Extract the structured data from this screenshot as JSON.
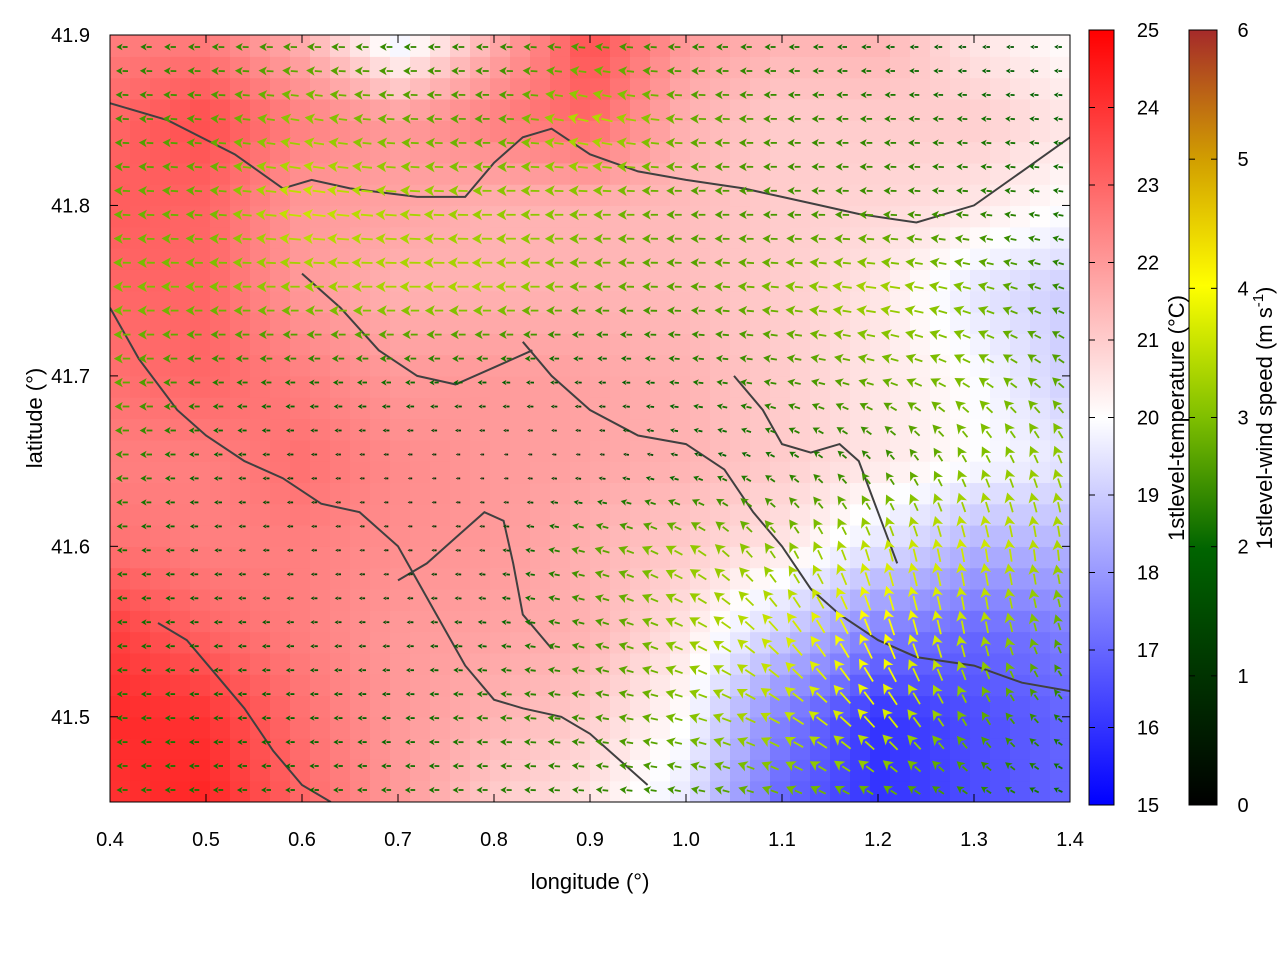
{
  "chart_data": {
    "type": "heatmap",
    "title": "",
    "xlabel": "longitude (°)",
    "ylabel": "latitude (°)",
    "xlim": [
      0.4,
      1.4
    ],
    "ylim": [
      41.45,
      41.9
    ],
    "x_ticks": [
      "0.4",
      "0.5",
      "0.6",
      "0.7",
      "0.8",
      "0.9",
      "1.0",
      "1.1",
      "1.2",
      "1.3",
      "1.4"
    ],
    "x_tick_values": [
      0.4,
      0.5,
      0.6,
      0.7,
      0.8,
      0.9,
      1.0,
      1.1,
      1.2,
      1.3,
      1.4
    ],
    "y_ticks": [
      "41.5",
      "41.6",
      "41.7",
      "41.8",
      "41.9"
    ],
    "y_tick_values": [
      41.5,
      41.6,
      41.7,
      41.8,
      41.9
    ],
    "grid": false,
    "colorbars": [
      {
        "label": "1stlevel-temperature (°C)",
        "range": [
          15,
          25
        ],
        "ticks": [
          "15",
          "16",
          "17",
          "18",
          "19",
          "20",
          "21",
          "22",
          "23",
          "24",
          "25"
        ],
        "tick_values": [
          15,
          16,
          17,
          18,
          19,
          20,
          21,
          22,
          23,
          24,
          25
        ],
        "colors": [
          "#0000ff",
          "#ffffff",
          "#ff0000"
        ]
      },
      {
        "label_main": "1stlevel-wind speed (m s",
        "label_sup": "-1",
        "label_end": ")",
        "range": [
          0,
          6
        ],
        "ticks": [
          "0",
          "1",
          "2",
          "3",
          "4",
          "5",
          "6"
        ],
        "tick_values": [
          0,
          1,
          2,
          3,
          4,
          5,
          6
        ],
        "colors": [
          "#000000",
          "#006400",
          "#7fbf00",
          "#ffff00",
          "#d2a000",
          "#a52a2a"
        ]
      }
    ],
    "temperature_field": {
      "lon": [
        0.4,
        0.5,
        0.6,
        0.7,
        0.8,
        0.9,
        1.0,
        1.1,
        1.2,
        1.3,
        1.4
      ],
      "lat": [
        41.45,
        41.5,
        41.55,
        41.6,
        41.65,
        41.7,
        41.75,
        41.8,
        41.85,
        41.9
      ],
      "values": [
        [
          24.0,
          24.3,
          23.0,
          22.0,
          21.0,
          20.5,
          19.5,
          17.0,
          16.0,
          16.5,
          17.0
        ],
        [
          24.2,
          24.0,
          22.8,
          22.0,
          21.5,
          21.0,
          20.0,
          17.5,
          16.0,
          16.5,
          17.0
        ],
        [
          23.8,
          23.0,
          22.5,
          22.0,
          21.8,
          21.5,
          20.5,
          19.0,
          17.5,
          17.0,
          17.5
        ],
        [
          22.8,
          22.5,
          22.5,
          22.2,
          22.0,
          21.5,
          21.0,
          20.5,
          19.5,
          18.5,
          18.5
        ],
        [
          22.5,
          22.5,
          22.8,
          22.3,
          22.0,
          21.8,
          21.5,
          21.0,
          20.5,
          20.0,
          19.5
        ],
        [
          22.8,
          23.0,
          22.5,
          22.0,
          22.0,
          21.8,
          21.5,
          21.0,
          20.5,
          20.0,
          19.0
        ],
        [
          23.0,
          23.0,
          22.0,
          21.5,
          21.5,
          21.5,
          21.3,
          21.0,
          20.5,
          19.5,
          19.0
        ],
        [
          23.2,
          23.0,
          22.0,
          21.8,
          21.5,
          21.5,
          21.3,
          21.0,
          20.8,
          20.5,
          20.0
        ],
        [
          23.0,
          23.5,
          22.5,
          22.0,
          22.5,
          23.0,
          21.5,
          21.0,
          21.0,
          21.0,
          20.5
        ],
        [
          22.5,
          22.5,
          21.5,
          19.5,
          21.5,
          23.5,
          22.0,
          21.5,
          21.5,
          20.5,
          20.0
        ]
      ]
    },
    "wind_field": {
      "lon": [
        0.4,
        0.5,
        0.6,
        0.7,
        0.8,
        0.9,
        1.0,
        1.1,
        1.2,
        1.3,
        1.4
      ],
      "lat": [
        41.45,
        41.5,
        41.55,
        41.6,
        41.65,
        41.7,
        41.75,
        41.8,
        41.85,
        41.9
      ],
      "speed": [
        [
          1.5,
          1.4,
          1.3,
          1.4,
          1.5,
          1.6,
          1.8,
          2.2,
          2.0,
          1.6,
          1.2
        ],
        [
          1.5,
          1.3,
          1.2,
          1.2,
          1.6,
          1.8,
          2.4,
          3.0,
          3.4,
          2.2,
          1.4
        ],
        [
          1.4,
          1.2,
          1.0,
          0.9,
          1.2,
          1.8,
          2.6,
          3.2,
          3.8,
          3.0,
          2.0
        ],
        [
          1.4,
          1.0,
          0.8,
          0.6,
          0.8,
          2.0,
          2.6,
          2.4,
          3.0,
          3.2,
          2.8
        ],
        [
          1.8,
          1.2,
          0.8,
          0.6,
          0.5,
          0.6,
          1.0,
          1.4,
          1.6,
          2.4,
          2.6
        ],
        [
          2.2,
          1.6,
          1.4,
          1.4,
          1.2,
          1.0,
          1.4,
          1.8,
          2.2,
          2.4,
          2.0
        ],
        [
          2.4,
          2.4,
          2.6,
          2.8,
          2.8,
          2.2,
          2.0,
          2.4,
          2.8,
          2.4,
          1.6
        ],
        [
          2.2,
          2.2,
          3.2,
          2.8,
          2.6,
          2.4,
          2.0,
          1.8,
          1.8,
          1.6,
          1.4
        ],
        [
          1.8,
          2.0,
          2.6,
          2.2,
          2.0,
          3.0,
          2.2,
          1.8,
          1.6,
          1.4,
          1.2
        ],
        [
          1.4,
          1.6,
          1.8,
          1.6,
          1.6,
          1.8,
          1.6,
          1.4,
          1.2,
          1.0,
          1.0
        ]
      ],
      "direction_deg": [
        [
          180,
          180,
          180,
          180,
          180,
          175,
          170,
          160,
          150,
          150,
          160
        ],
        [
          180,
          180,
          180,
          180,
          178,
          172,
          165,
          150,
          130,
          120,
          140
        ],
        [
          180,
          180,
          180,
          180,
          175,
          165,
          155,
          130,
          110,
          100,
          110
        ],
        [
          180,
          180,
          180,
          180,
          175,
          165,
          150,
          120,
          105,
          100,
          95
        ],
        [
          180,
          180,
          180,
          180,
          180,
          175,
          165,
          150,
          130,
          115,
          110
        ],
        [
          180,
          180,
          180,
          180,
          180,
          180,
          175,
          170,
          165,
          150,
          140
        ],
        [
          180,
          180,
          180,
          180,
          180,
          180,
          178,
          175,
          172,
          165,
          160
        ],
        [
          178,
          176,
          172,
          176,
          180,
          180,
          180,
          180,
          178,
          175,
          170
        ],
        [
          178,
          176,
          170,
          178,
          180,
          165,
          178,
          180,
          180,
          178,
          175
        ],
        [
          180,
          180,
          180,
          180,
          180,
          175,
          180,
          180,
          180,
          180,
          180
        ]
      ]
    },
    "coastlines": [
      [
        [
          0.4,
          41.86
        ],
        [
          0.46,
          41.85
        ],
        [
          0.53,
          41.83
        ],
        [
          0.58,
          41.81
        ],
        [
          0.61,
          41.815
        ],
        [
          0.65,
          41.81
        ],
        [
          0.72,
          41.805
        ],
        [
          0.77,
          41.805
        ],
        [
          0.8,
          41.825
        ],
        [
          0.83,
          41.84
        ],
        [
          0.86,
          41.845
        ],
        [
          0.9,
          41.83
        ],
        [
          0.95,
          41.82
        ],
        [
          1.0,
          41.815
        ],
        [
          1.06,
          41.81
        ],
        [
          1.1,
          41.805
        ],
        [
          1.14,
          41.8
        ],
        [
          1.18,
          41.795
        ],
        [
          1.24,
          41.79
        ],
        [
          1.3,
          41.8
        ],
        [
          1.35,
          41.82
        ],
        [
          1.4,
          41.84
        ]
      ],
      [
        [
          0.4,
          41.74
        ],
        [
          0.43,
          41.71
        ],
        [
          0.47,
          41.68
        ],
        [
          0.5,
          41.665
        ],
        [
          0.54,
          41.65
        ],
        [
          0.58,
          41.64
        ],
        [
          0.62,
          41.625
        ],
        [
          0.66,
          41.62
        ],
        [
          0.7,
          41.6
        ],
        [
          0.74,
          41.56
        ],
        [
          0.77,
          41.53
        ],
        [
          0.8,
          41.51
        ],
        [
          0.83,
          41.505
        ],
        [
          0.87,
          41.5
        ],
        [
          0.9,
          41.49
        ],
        [
          0.93,
          41.475
        ],
        [
          0.96,
          41.46
        ]
      ],
      [
        [
          0.83,
          41.72
        ],
        [
          0.86,
          41.7
        ],
        [
          0.9,
          41.68
        ],
        [
          0.95,
          41.665
        ],
        [
          1.0,
          41.66
        ],
        [
          1.04,
          41.645
        ],
        [
          1.07,
          41.62
        ],
        [
          1.1,
          41.6
        ],
        [
          1.13,
          41.575
        ],
        [
          1.16,
          41.56
        ],
        [
          1.2,
          41.545
        ],
        [
          1.24,
          41.535
        ],
        [
          1.3,
          41.53
        ],
        [
          1.35,
          41.52
        ],
        [
          1.4,
          41.515
        ]
      ],
      [
        [
          0.6,
          41.76
        ],
        [
          0.64,
          41.74
        ],
        [
          0.68,
          41.715
        ],
        [
          0.72,
          41.7
        ],
        [
          0.76,
          41.695
        ],
        [
          0.8,
          41.705
        ],
        [
          0.84,
          41.715
        ]
      ],
      [
        [
          0.7,
          41.58
        ],
        [
          0.73,
          41.59
        ],
        [
          0.76,
          41.605
        ],
        [
          0.79,
          41.62
        ],
        [
          0.81,
          41.615
        ],
        [
          0.82,
          41.59
        ],
        [
          0.83,
          41.56
        ],
        [
          0.86,
          41.54
        ]
      ],
      [
        [
          1.05,
          41.7
        ],
        [
          1.08,
          41.68
        ],
        [
          1.1,
          41.66
        ],
        [
          1.13,
          41.655
        ],
        [
          1.16,
          41.66
        ],
        [
          1.18,
          41.65
        ],
        [
          1.2,
          41.62
        ],
        [
          1.22,
          41.59
        ]
      ],
      [
        [
          0.45,
          41.555
        ],
        [
          0.48,
          41.545
        ],
        [
          0.51,
          41.525
        ],
        [
          0.54,
          41.505
        ],
        [
          0.57,
          41.48
        ],
        [
          0.6,
          41.46
        ],
        [
          0.63,
          41.45
        ]
      ]
    ]
  }
}
